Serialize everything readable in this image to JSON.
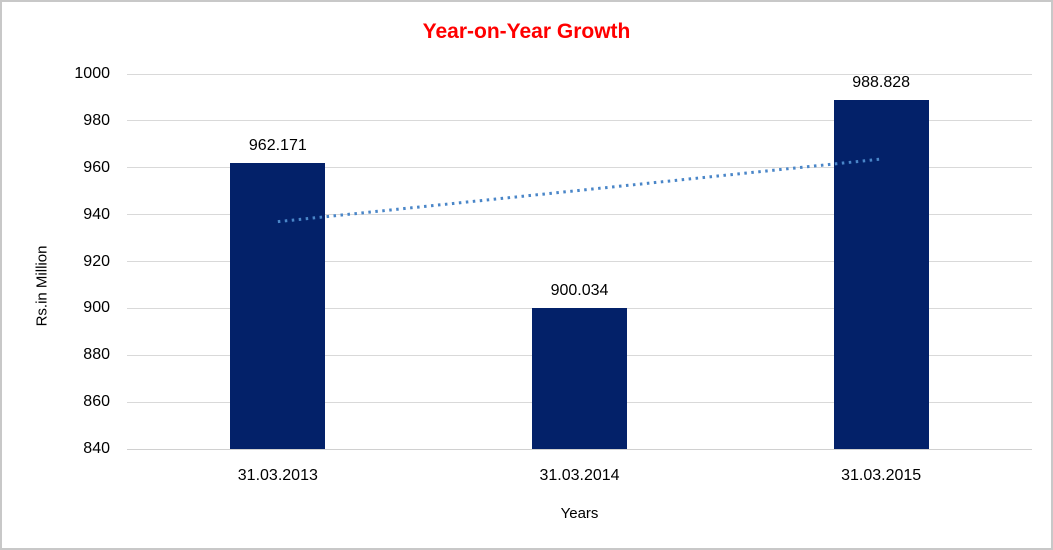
{
  "window": {
    "background": "#ffffff",
    "border_color": "#c8c8c8"
  },
  "chart_data": {
    "type": "bar",
    "title": "Year-on-Year Growth",
    "title_color": "#ff0000",
    "categories": [
      "31.03.2013",
      "31.03.2014",
      "31.03.2015"
    ],
    "values": [
      962.171,
      900.034,
      988.828
    ],
    "value_labels": [
      "962.171",
      "900.034",
      "988.828"
    ],
    "xlabel": "Years",
    "ylabel": "Rs.in Million",
    "ylim": [
      840,
      1000
    ],
    "yticks": [
      840,
      860,
      880,
      900,
      920,
      940,
      960,
      980,
      1000
    ],
    "grid": true,
    "gridline_color": "#d9d9d9",
    "baseline_color": "#d0d0d0",
    "bar_color": "#032169",
    "legend": "none",
    "trendline": {
      "style": "dotted",
      "color": "#4a86c8",
      "start_category_index": 0,
      "end_category_index": 2,
      "start_value": 937.0,
      "end_value": 963.7
    }
  }
}
